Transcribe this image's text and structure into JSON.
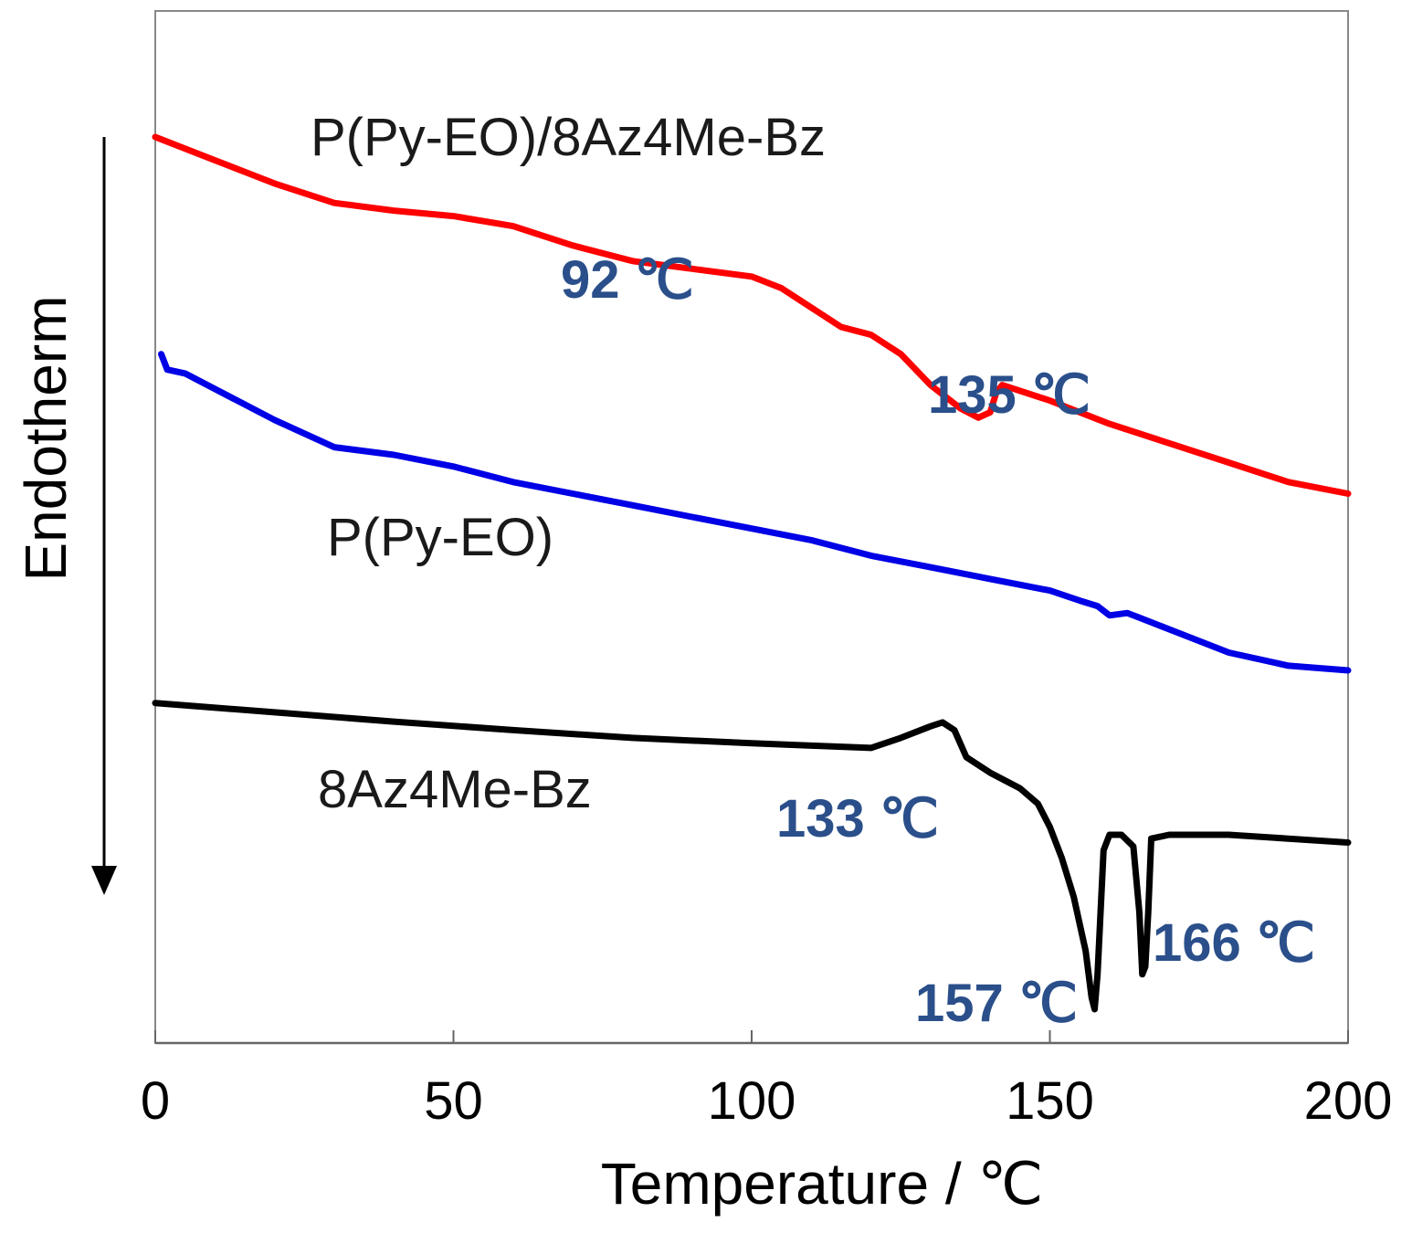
{
  "chart_data": {
    "type": "line",
    "title": "",
    "xlabel": "Temperature / ℃",
    "ylabel": "Endotherm",
    "xlim": [
      0,
      200
    ],
    "xticks": [
      "0",
      "50",
      "100",
      "150",
      "200"
    ],
    "y_units": "arbitrary (stacked DSC traces, endotherm down)",
    "series": [
      {
        "name": "P(Py-EO)/8Az4Me-Bz",
        "color": "#ff0000",
        "points": [
          [
            0,
            100
          ],
          [
            10,
            97
          ],
          [
            20,
            94
          ],
          [
            30,
            91.5
          ],
          [
            40,
            90.5
          ],
          [
            50,
            89.8
          ],
          [
            60,
            88.5
          ],
          [
            70,
            86
          ],
          [
            80,
            84
          ],
          [
            90,
            83
          ],
          [
            100,
            82
          ],
          [
            105,
            80.5
          ],
          [
            110,
            78
          ],
          [
            115,
            75.5
          ],
          [
            120,
            74.5
          ],
          [
            125,
            72
          ],
          [
            130,
            68
          ],
          [
            135,
            65
          ],
          [
            138,
            63.8
          ],
          [
            140,
            64.5
          ],
          [
            141,
            67
          ],
          [
            142,
            68
          ],
          [
            150,
            66
          ],
          [
            160,
            63
          ],
          [
            170,
            60.5
          ],
          [
            180,
            58
          ],
          [
            190,
            55.5
          ],
          [
            200,
            54
          ]
        ]
      },
      {
        "name": "P(Py-EO)",
        "color": "#0000e6",
        "points": [
          [
            1,
            72
          ],
          [
            2,
            70
          ],
          [
            5,
            69.5
          ],
          [
            10,
            67.5
          ],
          [
            20,
            63.5
          ],
          [
            30,
            60
          ],
          [
            40,
            59
          ],
          [
            50,
            57.5
          ],
          [
            60,
            55.5
          ],
          [
            70,
            54
          ],
          [
            80,
            52.5
          ],
          [
            90,
            51
          ],
          [
            100,
            49.5
          ],
          [
            110,
            48
          ],
          [
            120,
            46
          ],
          [
            130,
            44.5
          ],
          [
            140,
            43
          ],
          [
            150,
            41.5
          ],
          [
            155,
            40.2
          ],
          [
            158,
            39.5
          ],
          [
            160,
            38.3
          ],
          [
            163,
            38.6
          ],
          [
            165,
            38
          ],
          [
            170,
            36.5
          ],
          [
            180,
            33.5
          ],
          [
            190,
            31.8
          ],
          [
            200,
            31.2
          ]
        ]
      },
      {
        "name": "8Az4Me-Bz",
        "color": "#000000",
        "points": [
          [
            0,
            27
          ],
          [
            20,
            25.8
          ],
          [
            40,
            24.6
          ],
          [
            60,
            23.5
          ],
          [
            80,
            22.5
          ],
          [
            100,
            21.8
          ],
          [
            110,
            21.5
          ],
          [
            120,
            21.2
          ],
          [
            125,
            22.5
          ],
          [
            130,
            24
          ],
          [
            132,
            24.5
          ],
          [
            134,
            23.5
          ],
          [
            136,
            20
          ],
          [
            140,
            18
          ],
          [
            145,
            16
          ],
          [
            148,
            14
          ],
          [
            150,
            11
          ],
          [
            152,
            7
          ],
          [
            154,
            2
          ],
          [
            156,
            -5
          ],
          [
            157,
            -11
          ],
          [
            157.5,
            -12.5
          ],
          [
            158,
            -8
          ],
          [
            158.5,
            0
          ],
          [
            159,
            8
          ],
          [
            160,
            10
          ],
          [
            162,
            10
          ],
          [
            164,
            8.5
          ],
          [
            165,
            0
          ],
          [
            165.5,
            -8
          ],
          [
            166,
            -7
          ],
          [
            166.5,
            0
          ],
          [
            167,
            9.5
          ],
          [
            170,
            10
          ],
          [
            180,
            10
          ],
          [
            190,
            9.5
          ],
          [
            200,
            9
          ]
        ]
      }
    ],
    "series_labels": [
      "P(Py-EO)/8Az4Me-Bz",
      "P(Py-EO)",
      "8Az4Me-Bz"
    ],
    "annotations": [
      "92 ℃",
      "135 ℃",
      "133 ℃",
      "157 ℃",
      "166 ℃"
    ]
  }
}
